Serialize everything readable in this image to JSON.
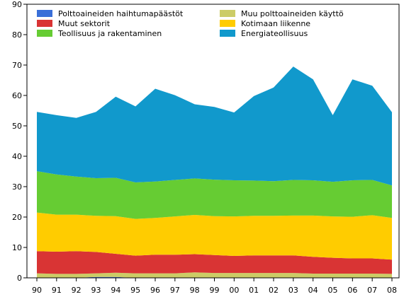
{
  "chart_data": {
    "type": "area",
    "stacked": true,
    "categories": [
      "90",
      "91",
      "92",
      "93",
      "94",
      "95",
      "96",
      "97",
      "98",
      "99",
      "00",
      "01",
      "02",
      "03",
      "04",
      "05",
      "06",
      "07",
      "08"
    ],
    "ylim": [
      0,
      90
    ],
    "yticks": [
      0,
      10,
      20,
      30,
      40,
      50,
      60,
      70,
      80,
      90
    ],
    "grid": false,
    "legend_position": "top-left",
    "series": [
      {
        "name": "Polttoaineiden haihtumapäästöt",
        "color": "#3a6fd8",
        "values": [
          0.0,
          0.0,
          0.0,
          0.3,
          0.3,
          0.0,
          0.0,
          0.0,
          0.0,
          0.0,
          0.0,
          0.0,
          0.0,
          0.0,
          0.0,
          0.0,
          0.0,
          0.0,
          0.0
        ]
      },
      {
        "name": "Muu polttoaineiden käyttö",
        "color": "#cccc66",
        "values": [
          1.5,
          1.3,
          1.3,
          1.2,
          1.4,
          1.5,
          1.5,
          1.5,
          1.8,
          1.6,
          1.6,
          1.6,
          1.6,
          1.6,
          1.4,
          1.4,
          1.4,
          1.4,
          1.3
        ]
      },
      {
        "name": "Muut sektorit",
        "color": "#d93434",
        "values": [
          7.3,
          7.3,
          7.5,
          7.0,
          6.2,
          5.8,
          6.1,
          6.1,
          6.0,
          5.9,
          5.6,
          5.8,
          5.8,
          5.8,
          5.5,
          5.2,
          5.0,
          5.0,
          4.7
        ]
      },
      {
        "name": "Kotimaan liikenne",
        "color": "#ffcc00",
        "values": [
          12.7,
          12.2,
          12.0,
          11.9,
          12.4,
          12.1,
          12.1,
          12.6,
          12.9,
          12.8,
          13.0,
          13.0,
          13.0,
          13.1,
          13.6,
          13.6,
          13.7,
          14.2,
          13.7
        ]
      },
      {
        "name": "Teollisuus ja rakentaminen",
        "color": "#66cc33",
        "values": [
          13.6,
          13.2,
          12.5,
          12.4,
          12.6,
          12.0,
          12.0,
          12.0,
          12.0,
          12.0,
          11.9,
          11.6,
          11.4,
          11.7,
          11.6,
          11.4,
          12.0,
          11.6,
          10.7
        ]
      },
      {
        "name": "Energiateollisuus",
        "color": "#1199cc",
        "values": [
          19.5,
          19.5,
          19.3,
          21.8,
          26.7,
          25.0,
          30.5,
          27.9,
          24.4,
          23.9,
          22.3,
          27.8,
          30.8,
          37.3,
          33.2,
          21.9,
          33.2,
          31.0,
          24.1
        ]
      }
    ]
  }
}
